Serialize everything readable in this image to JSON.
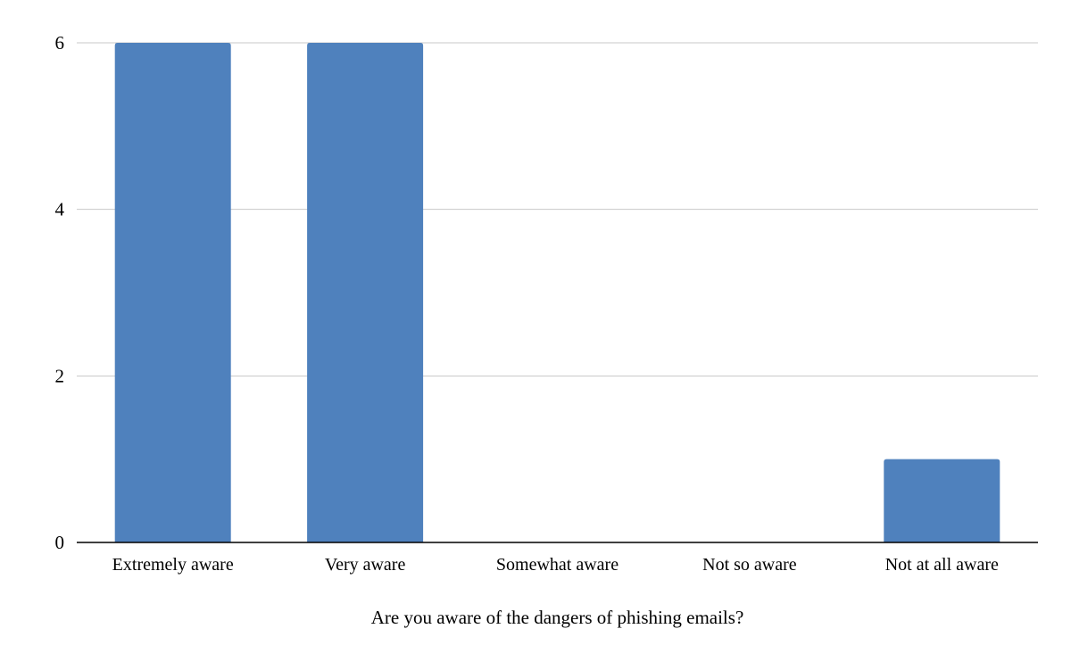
{
  "chart_data": {
    "type": "bar",
    "title": "",
    "xlabel": "Are you aware of the dangers of phishing emails?",
    "ylabel": "",
    "categories": [
      "Extremely aware",
      "Very aware",
      "Somewhat aware",
      "Not so aware",
      "Not at all aware"
    ],
    "series": [
      {
        "values": [
          6,
          6,
          0,
          0,
          1
        ]
      }
    ],
    "ylim": [
      0,
      6
    ],
    "yticks": [
      0,
      2,
      4,
      6
    ],
    "grid": true,
    "legend": "none",
    "colors": {
      "bar": "#4f81bd",
      "grid": "#c8c8c8",
      "axis": "#000000"
    }
  }
}
